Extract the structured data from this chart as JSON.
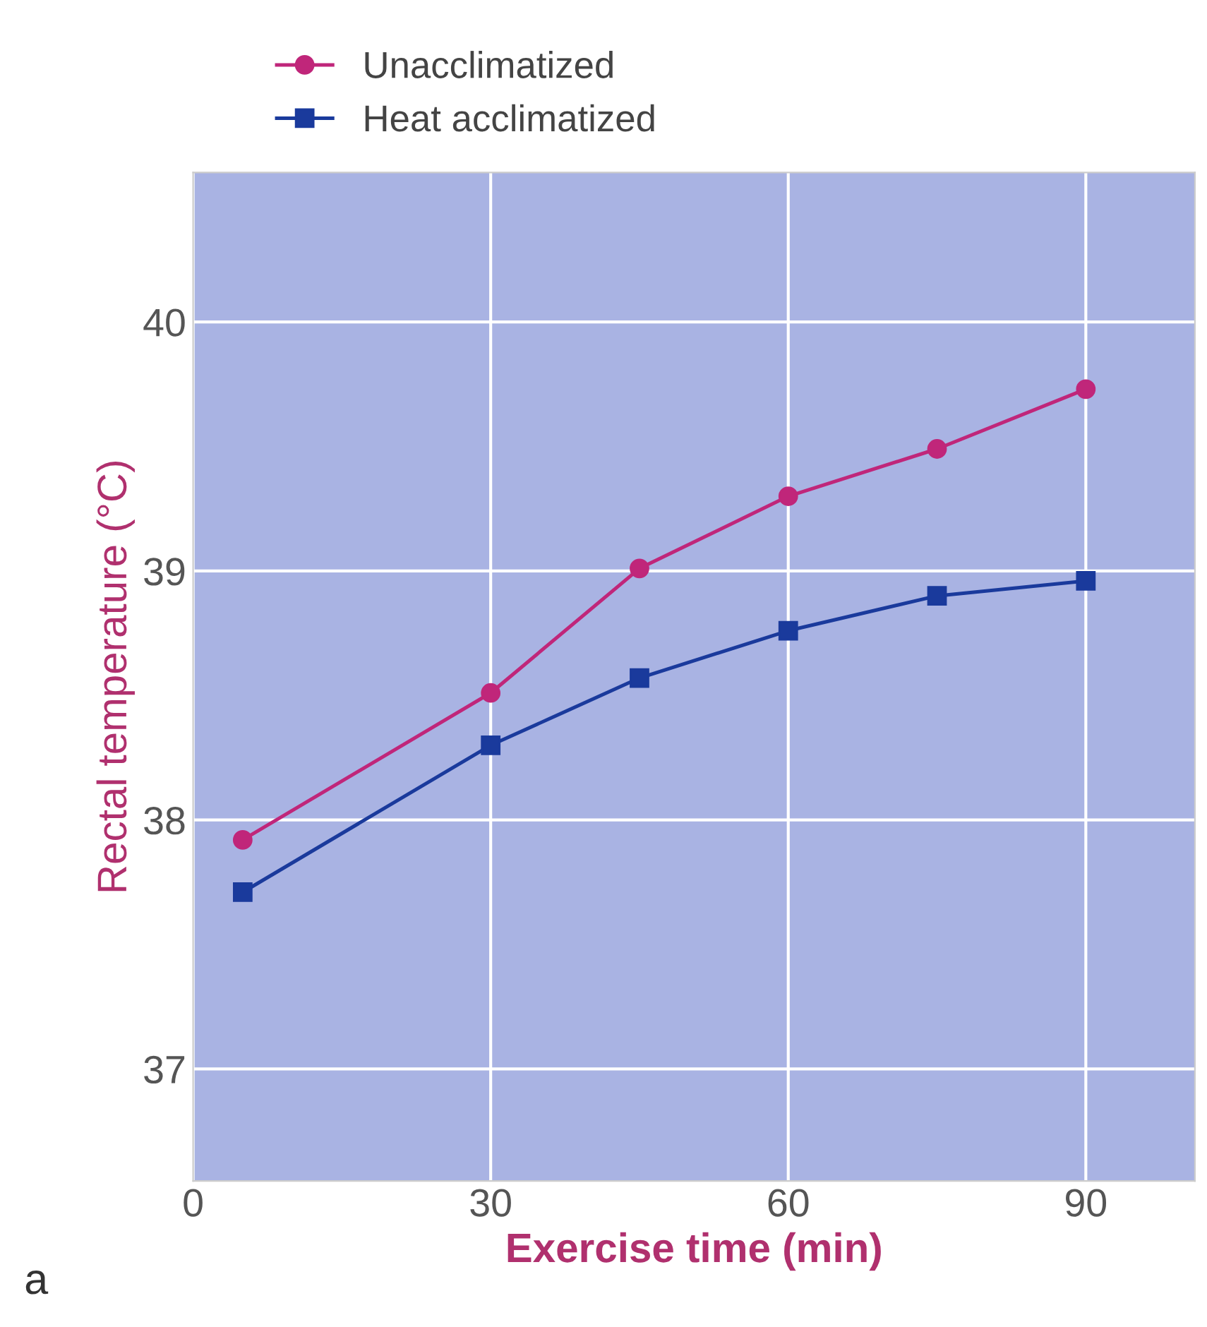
{
  "chart_data": {
    "type": "line",
    "xlabel": "Exercise time (min)",
    "ylabel": "Rectal temperature (°C)",
    "annotations": [
      "a"
    ],
    "x": [
      5,
      30,
      45,
      60,
      75,
      90
    ],
    "series": [
      {
        "name": "Unacclimatized",
        "color": "#c0267a",
        "marker": "circle",
        "values": [
          37.92,
          38.51,
          39.01,
          39.3,
          39.49,
          39.73
        ]
      },
      {
        "name": "Heat acclimatized",
        "color": "#1a3a9c",
        "marker": "square",
        "values": [
          37.71,
          38.3,
          38.57,
          38.76,
          38.9,
          38.96
        ]
      }
    ],
    "xlim": [
      0,
      101
    ],
    "ylim": [
      36.55,
      40.6
    ],
    "xticks": [
      0,
      30,
      60,
      90
    ],
    "yticks": [
      37,
      38,
      39,
      40
    ],
    "grid": true,
    "legend": "top left"
  }
}
